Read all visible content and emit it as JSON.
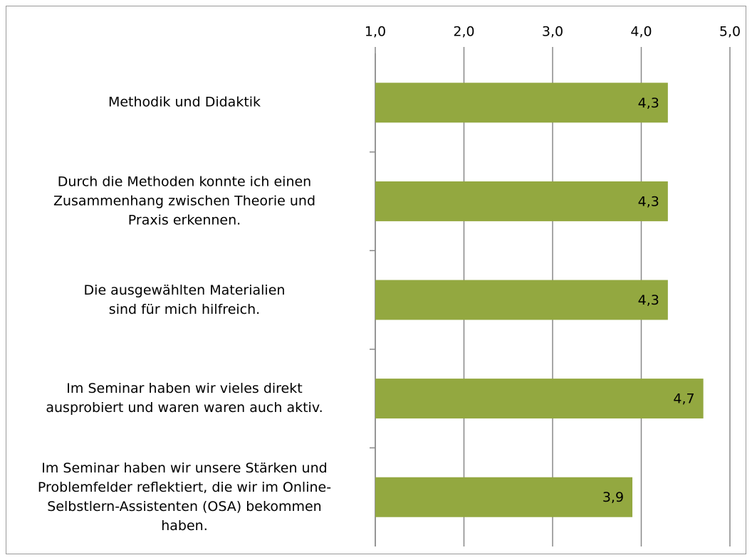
{
  "chart_data": {
    "type": "barh",
    "categories": [
      "Methodik und Didaktik",
      "Durch die Methoden konnte ich einen\nZusammenhang zwischen Theorie und\nPraxis erkennen.",
      "Die ausgewählten Materialien\nsind für mich hilfreich.",
      "Im Seminar haben wir vieles direkt\nausprobiert und waren waren auch aktiv.",
      "Im Seminar haben wir unsere Stärken und\nProblemfelder reflektiert, die wir im Online-\nSelbstlern-Assistenten (OSA) bekommen\nhaben."
    ],
    "values": [
      4.3,
      4.3,
      4.3,
      4.7,
      3.9
    ],
    "value_labels": [
      "4,3",
      "4,3",
      "4,3",
      "4,7",
      "3,9"
    ],
    "color": "#93a840",
    "xlim": [
      1,
      5
    ],
    "xticks": [
      {
        "value": 1,
        "label": "1,0"
      },
      {
        "value": 2,
        "label": "2,0"
      },
      {
        "value": 3,
        "label": "3,0"
      },
      {
        "value": 4,
        "label": "4,0"
      },
      {
        "value": 5,
        "label": "5,0"
      }
    ],
    "grid": true
  }
}
